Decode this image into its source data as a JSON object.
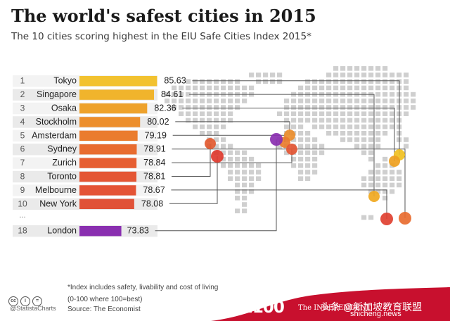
{
  "header": {
    "title": "The world's safest cities in 2015",
    "subtitle": "The 10 cities scoring highest in the EIU Safe Cities Index 2015*"
  },
  "footer": {
    "footnote_line1": "*Index includes safety, livability and cost of living",
    "footnote_line2": "(0-100 where 100=best)",
    "source": "Source: The Economist",
    "brand": "@StatistaCharts",
    "license_icons": [
      "cc",
      "i",
      "="
    ],
    "logo": "i100",
    "publisher": "The INDEPENDENT",
    "watermark": "头条 @新加坡教育联盟",
    "watermark_url": "shicheng.news"
  },
  "colors": {
    "bar_gradient": [
      "#f2c230",
      "#f0b42c",
      "#eea22c",
      "#ec8e2c",
      "#ea7c2e",
      "#e86c30",
      "#e65e32",
      "#e45634",
      "#e45436",
      "#e05238"
    ],
    "london_bar": "#8a2fb0",
    "map_dot": "#cfcfcf",
    "connector_line": "#555555"
  },
  "chart_data": {
    "type": "bar",
    "orientation": "horizontal",
    "xlim": [
      0,
      100
    ],
    "rows": [
      {
        "rank": "1",
        "city": "Tokyo",
        "value": 85.63
      },
      {
        "rank": "2",
        "city": "Singapore",
        "value": 84.61
      },
      {
        "rank": "3",
        "city": "Osaka",
        "value": 82.36
      },
      {
        "rank": "4",
        "city": "Stockholm",
        "value": 80.02
      },
      {
        "rank": "5",
        "city": "Amsterdam",
        "value": 79.19
      },
      {
        "rank": "6",
        "city": "Sydney",
        "value": 78.91
      },
      {
        "rank": "7",
        "city": "Zurich",
        "value": 78.84
      },
      {
        "rank": "8",
        "city": "Toronto",
        "value": 78.81
      },
      {
        "rank": "9",
        "city": "Melbourne",
        "value": 78.67
      },
      {
        "rank": "10",
        "city": "New York",
        "value": 78.08
      }
    ],
    "ellipsis": "...",
    "extra": {
      "rank": "18",
      "city": "London",
      "value": 73.83
    }
  }
}
